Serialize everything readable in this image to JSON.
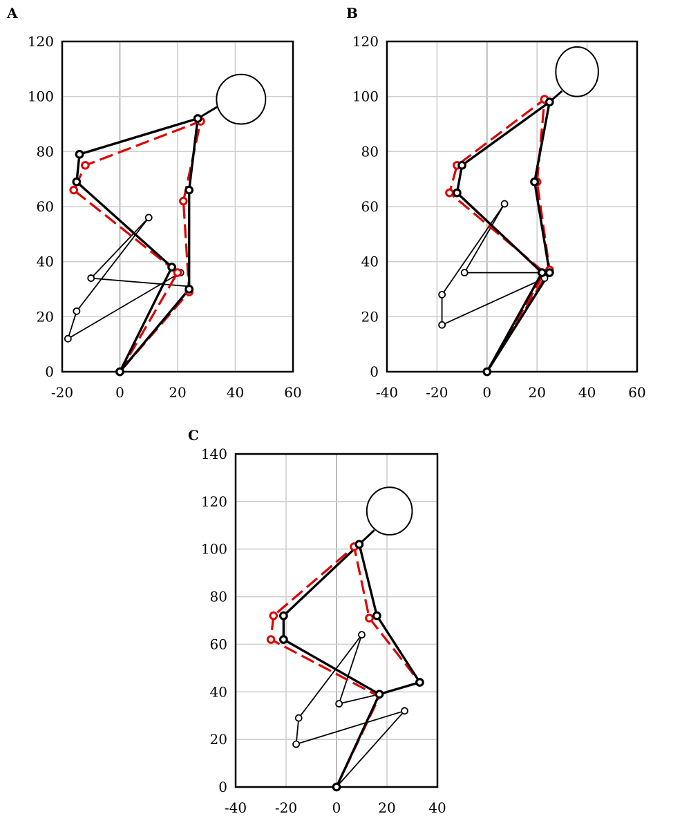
{
  "colors": {
    "reference": "#e00000",
    "subject": "#000000",
    "grid": "#cfcfcf"
  },
  "chart_data": [
    {
      "panel": "A",
      "type": "scatter",
      "xlim": [
        -20,
        60
      ],
      "ylim": [
        0,
        120
      ],
      "xticks": [
        -20,
        0,
        20,
        40,
        60
      ],
      "yticks": [
        0,
        20,
        40,
        60,
        80,
        100,
        120
      ],
      "xtick_labels": [
        "-20",
        "0",
        "20",
        "40",
        "60"
      ],
      "ytick_labels": [
        "0",
        "20",
        "40",
        "60",
        "80",
        "100",
        "120"
      ],
      "grid": true,
      "head": {
        "x": 42,
        "y": 99,
        "r": 8.5,
        "ry": 9
      },
      "black_line": [
        [
          0,
          0
        ],
        [
          18,
          38
        ],
        [
          -15,
          69
        ],
        [
          -14,
          79
        ],
        [
          27,
          92
        ],
        [
          24,
          66
        ],
        [
          24,
          30
        ],
        [
          0,
          0
        ]
      ],
      "black_neck": [
        [
          27,
          92
        ],
        [
          35,
          97
        ]
      ],
      "red_line": [
        [
          0,
          0
        ],
        [
          20,
          36
        ],
        [
          -16,
          66
        ],
        [
          -12,
          75
        ],
        [
          28,
          91
        ],
        [
          22,
          62
        ],
        [
          24,
          29
        ],
        [
          0,
          0
        ]
      ],
      "thin_lines": [
        [
          [
            10,
            56
          ],
          [
            -10,
            34
          ],
          [
            24,
            31
          ]
        ],
        [
          [
            10,
            56
          ],
          [
            -15,
            22
          ],
          [
            -18,
            12
          ],
          [
            21,
            36
          ]
        ]
      ],
      "red_joints": [
        [
          20,
          36
        ],
        [
          -16,
          66
        ],
        [
          -12,
          75
        ],
        [
          28,
          91
        ],
        [
          22,
          62
        ],
        [
          24,
          29
        ],
        [
          0,
          0
        ]
      ],
      "black_joints": [
        [
          0,
          0
        ],
        [
          18,
          38
        ],
        [
          -15,
          69
        ],
        [
          -14,
          79
        ],
        [
          27,
          92
        ],
        [
          24,
          66
        ],
        [
          24,
          30
        ]
      ],
      "thin_joints": [
        [
          10,
          56
        ],
        [
          -10,
          34
        ],
        [
          -15,
          22
        ],
        [
          -18,
          12
        ],
        [
          21,
          36
        ]
      ]
    },
    {
      "panel": "B",
      "type": "scatter",
      "xlim": [
        -40,
        60
      ],
      "ylim": [
        0,
        120
      ],
      "xticks": [
        -40,
        -20,
        0,
        20,
        40,
        60
      ],
      "yticks": [
        0,
        20,
        40,
        60,
        80,
        100,
        120
      ],
      "xtick_labels": [
        "-40",
        "-20",
        "0",
        "20",
        "40",
        "60"
      ],
      "ytick_labels": [
        "0",
        "20",
        "40",
        "60",
        "80",
        "100",
        "120"
      ],
      "grid": true,
      "head": {
        "x": 36,
        "y": 109,
        "r": 8.5,
        "ry": 9
      },
      "black_line": [
        [
          0,
          0
        ],
        [
          22,
          36
        ],
        [
          -12,
          65
        ],
        [
          -10,
          75
        ],
        [
          25,
          98
        ],
        [
          19,
          69
        ],
        [
          25,
          36
        ],
        [
          0,
          0
        ]
      ],
      "black_neck": [
        [
          25,
          98
        ],
        [
          30,
          102
        ]
      ],
      "red_line": [
        [
          0,
          0
        ],
        [
          23,
          36
        ],
        [
          -15,
          65
        ],
        [
          -12,
          75
        ],
        [
          23,
          99
        ],
        [
          20,
          69
        ],
        [
          25,
          37
        ],
        [
          0,
          0
        ]
      ],
      "thin_lines": [
        [
          [
            7,
            61
          ],
          [
            -18,
            28
          ],
          [
            -18,
            17
          ],
          [
            23,
            34
          ]
        ],
        [
          [
            7,
            61
          ],
          [
            -9,
            36
          ],
          [
            22,
            36
          ]
        ]
      ],
      "red_joints": [
        [
          -15,
          65
        ],
        [
          -12,
          75
        ],
        [
          23,
          99
        ],
        [
          20,
          69
        ],
        [
          25,
          37
        ]
      ],
      "black_joints": [
        [
          0,
          0
        ],
        [
          22,
          36
        ],
        [
          -12,
          65
        ],
        [
          -10,
          75
        ],
        [
          25,
          98
        ],
        [
          19,
          69
        ],
        [
          25,
          36
        ]
      ],
      "thin_joints": [
        [
          7,
          61
        ],
        [
          -9,
          36
        ],
        [
          -18,
          28
        ],
        [
          -18,
          17
        ],
        [
          23,
          34
        ]
      ]
    },
    {
      "panel": "C",
      "type": "scatter",
      "xlim": [
        -40,
        40
      ],
      "ylim": [
        0,
        140
      ],
      "xticks": [
        -40,
        -20,
        0,
        20,
        40
      ],
      "yticks": [
        0,
        20,
        40,
        60,
        80,
        100,
        120,
        140
      ],
      "xtick_labels": [
        "-40",
        "-20",
        "0",
        "20",
        "40"
      ],
      "ytick_labels": [
        "0",
        "20",
        "40",
        "60",
        "80",
        "100",
        "120",
        "140"
      ],
      "grid": true,
      "head": {
        "x": 21,
        "y": 116,
        "r": 9,
        "ry": 10
      },
      "black_line": [
        [
          0,
          0
        ],
        [
          17,
          39
        ],
        [
          -21,
          62
        ],
        [
          -21,
          72
        ],
        [
          9,
          102
        ],
        [
          16,
          72
        ],
        [
          33,
          44
        ],
        [
          17,
          39
        ],
        [
          0,
          0
        ]
      ],
      "black_neck": [
        [
          9,
          102
        ],
        [
          15,
          108
        ]
      ],
      "red_line": [
        [
          0,
          0
        ],
        [
          17,
          38
        ],
        [
          -26,
          62
        ],
        [
          -25,
          72
        ],
        [
          7,
          101
        ],
        [
          13,
          71
        ],
        [
          33,
          44
        ]
      ],
      "thin_lines": [
        [
          [
            10,
            64
          ],
          [
            1,
            35
          ],
          [
            17,
            39
          ]
        ],
        [
          [
            10,
            64
          ],
          [
            -15,
            29
          ],
          [
            -16,
            18
          ],
          [
            27,
            32
          ],
          [
            0,
            0
          ]
        ]
      ],
      "red_joints": [
        [
          -26,
          62
        ],
        [
          -25,
          72
        ],
        [
          7,
          101
        ],
        [
          13,
          71
        ]
      ],
      "black_joints": [
        [
          0,
          0
        ],
        [
          17,
          39
        ],
        [
          -21,
          62
        ],
        [
          -21,
          72
        ],
        [
          9,
          102
        ],
        [
          16,
          72
        ],
        [
          33,
          44
        ]
      ],
      "thin_joints": [
        [
          10,
          64
        ],
        [
          1,
          35
        ],
        [
          -15,
          29
        ],
        [
          -16,
          18
        ],
        [
          27,
          32
        ]
      ]
    }
  ]
}
